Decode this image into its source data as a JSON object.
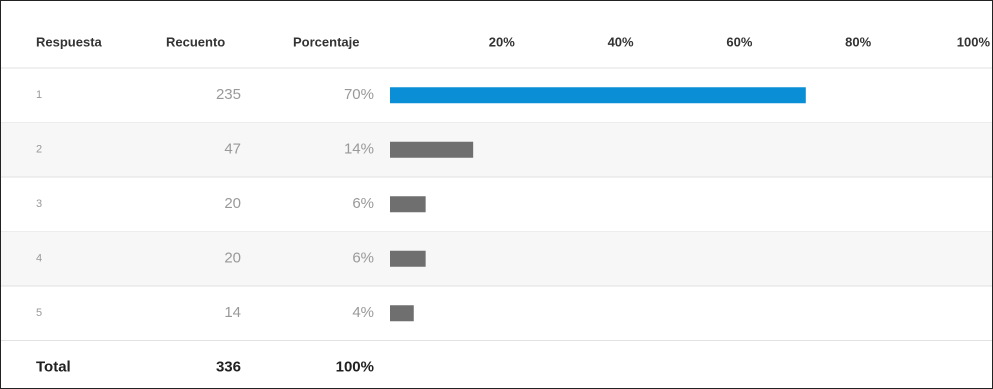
{
  "table": {
    "columns": [
      "Respuesta",
      "Recuento",
      "Porcentaje"
    ],
    "xlim": [
      0,
      100
    ],
    "axis_ticks": [
      {
        "value": 20,
        "label": "20%"
      },
      {
        "value": 40,
        "label": "40%"
      },
      {
        "value": 60,
        "label": "60%"
      },
      {
        "value": 80,
        "label": "80%"
      },
      {
        "value": 100,
        "label": "100%"
      }
    ],
    "highlight_color": "#0a8fd6",
    "bar_color": "#6f6f6f",
    "rows": [
      {
        "respuesta": "1",
        "recuento": 235,
        "percent": 70,
        "percent_label": "70%"
      },
      {
        "respuesta": "2",
        "recuento": 47,
        "percent": 14,
        "percent_label": "14%"
      },
      {
        "respuesta": "3",
        "recuento": 20,
        "percent": 6,
        "percent_label": "6%"
      },
      {
        "respuesta": "4",
        "recuento": 20,
        "percent": 6,
        "percent_label": "6%"
      },
      {
        "respuesta": "5",
        "recuento": 14,
        "percent": 4,
        "percent_label": "4%"
      }
    ],
    "total": {
      "label": "Total",
      "recuento": 336,
      "percent_label": "100%"
    }
  }
}
